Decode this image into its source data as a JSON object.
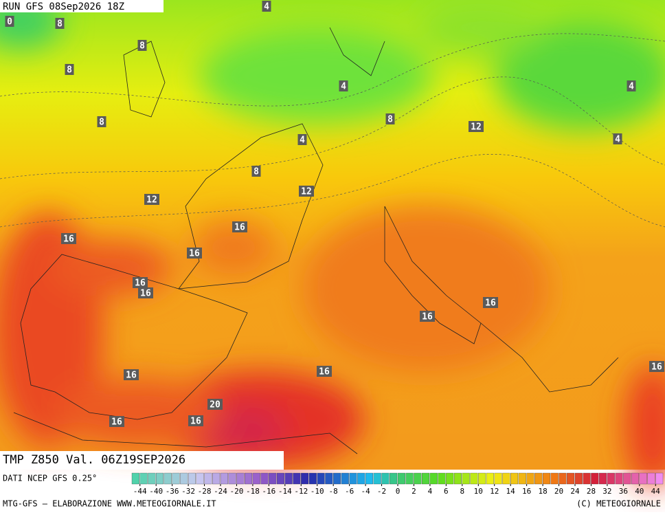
{
  "header": {
    "run": "RUN GFS 08Sep2026 18Z",
    "title": "TMP Z850 Val. 06Z19SEP2026"
  },
  "map": {
    "contour_labels": [
      0,
      8,
      4,
      8,
      8,
      4,
      4,
      8,
      8,
      12,
      4,
      4,
      8,
      12,
      12,
      16,
      16,
      16,
      16,
      16,
      16,
      16,
      16,
      16,
      16,
      20,
      16,
      16
    ]
  },
  "legend": {
    "source": "DATI NCEP GFS 0.25°",
    "ticks": [
      -44,
      -40,
      -36,
      -32,
      -28,
      -24,
      -20,
      -18,
      -16,
      -14,
      -12,
      -10,
      -8,
      -6,
      -4,
      -2,
      0,
      2,
      4,
      6,
      8,
      10,
      12,
      14,
      16,
      18,
      20,
      24,
      28,
      32,
      36,
      40,
      44
    ]
  },
  "footer": {
    "credit": "MTG-GFS — ELABORAZIONE WWW.METEOGIORNALE.IT",
    "copyright": "(C) METEOGIORNALE"
  }
}
